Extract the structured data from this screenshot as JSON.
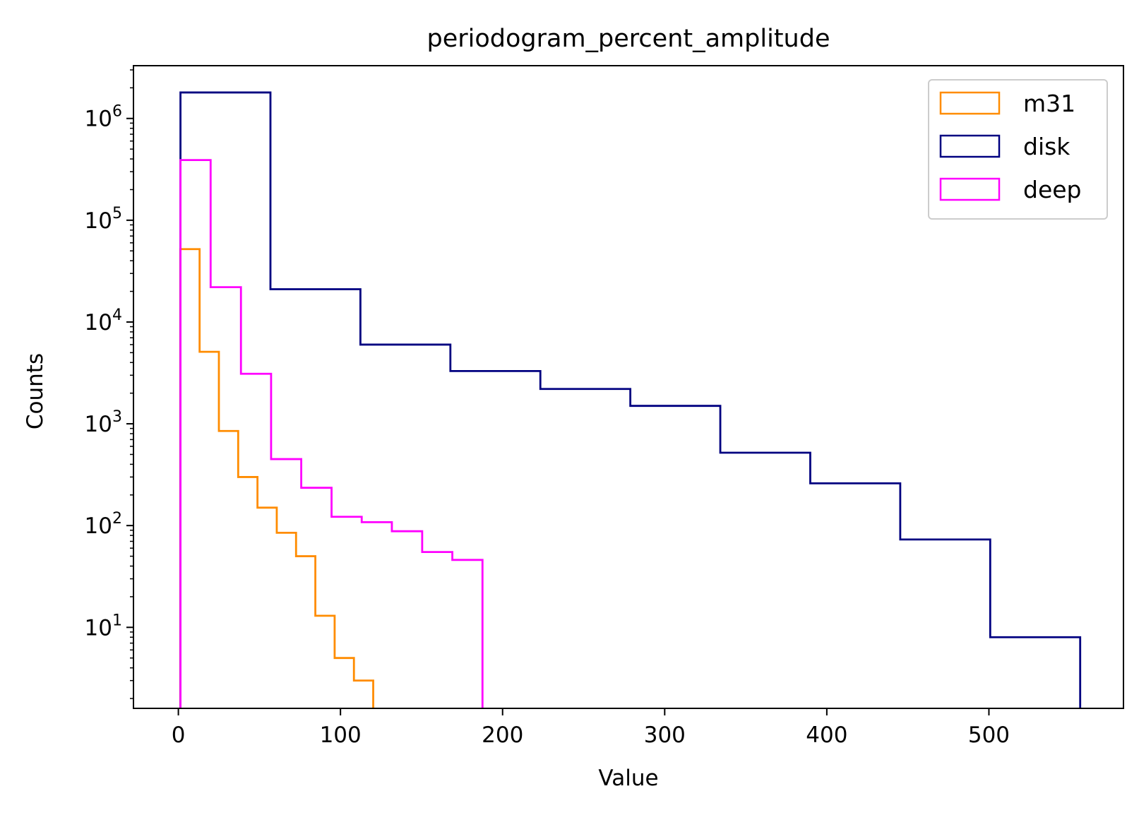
{
  "chart_data": {
    "type": "histogram",
    "title": "periodogram_percent_amplitude",
    "xlabel": "Value",
    "ylabel": "Counts",
    "xlim": [
      -27.7,
      583
    ],
    "ylim": [
      1.6,
      3300000
    ],
    "yscale": "log",
    "xticks": [
      0,
      100,
      200,
      300,
      400,
      500
    ],
    "yticks": [
      {
        "value": 10,
        "base": "10",
        "exp": "1"
      },
      {
        "value": 100,
        "base": "10",
        "exp": "2"
      },
      {
        "value": 1000,
        "base": "10",
        "exp": "3"
      },
      {
        "value": 10000,
        "base": "10",
        "exp": "4"
      },
      {
        "value": 100000,
        "base": "10",
        "exp": "5"
      },
      {
        "value": 1000000,
        "base": "10",
        "exp": "6"
      }
    ],
    "legend_position": "top-right",
    "grid": false,
    "series": [
      {
        "name": "m31",
        "color": "#ff8c00",
        "bin_edges": [
          1.2,
          13.1,
          25.0,
          36.9,
          48.8,
          60.7,
          72.6,
          84.5,
          96.4,
          108.3,
          120.2
        ],
        "counts": [
          52000,
          5100,
          850,
          300,
          150,
          85,
          50,
          13,
          5,
          3
        ]
      },
      {
        "name": "disk",
        "color": "#000080",
        "bin_edges": [
          1.3,
          56.8,
          112.3,
          167.8,
          223.3,
          278.8,
          334.3,
          389.8,
          445.3,
          500.8,
          556.3
        ],
        "counts": [
          1800000,
          21000,
          6000,
          3300,
          2200,
          1500,
          520,
          260,
          73,
          8
        ]
      },
      {
        "name": "deep",
        "color": "#ff00ff",
        "bin_edges": [
          1.3,
          19.9,
          38.6,
          57.2,
          75.8,
          94.5,
          113.1,
          131.7,
          150.4,
          169.0,
          187.6
        ],
        "counts": [
          390000,
          22000,
          3100,
          450,
          235,
          122,
          108,
          88,
          55,
          46
        ]
      }
    ]
  }
}
